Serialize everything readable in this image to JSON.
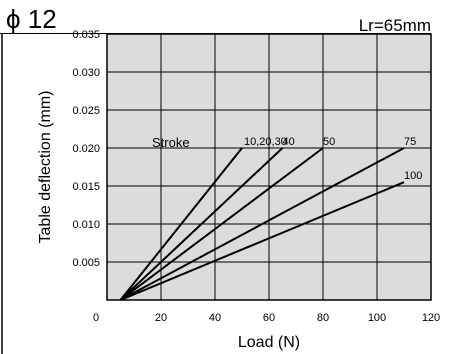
{
  "header": {
    "title": "ϕ 12",
    "corner_label": "Lr=65mm"
  },
  "colors": {
    "plot_background": "#dcdcdc",
    "grid": "#000000",
    "lines": "#000000"
  },
  "chart_data": {
    "type": "line",
    "title": "",
    "xlabel": "Load (N)",
    "ylabel": "Table deflection (mm)",
    "xlim": [
      0,
      120
    ],
    "ylim": [
      0,
      0.035
    ],
    "x_ticks": [
      "0",
      "20",
      "40",
      "60",
      "80",
      "100",
      "120"
    ],
    "y_ticks": [
      "0.005",
      "0.010",
      "0.015",
      "0.020",
      "0.025",
      "0.030",
      "0.035"
    ],
    "grid": true,
    "legend_title": "Stroke",
    "series": [
      {
        "name": "10,20,30",
        "x": [
          5,
          50
        ],
        "y": [
          0,
          0.02
        ]
      },
      {
        "name": "40",
        "x": [
          5,
          65
        ],
        "y": [
          0,
          0.02
        ]
      },
      {
        "name": "50",
        "x": [
          5,
          80
        ],
        "y": [
          0,
          0.02
        ]
      },
      {
        "name": "75",
        "x": [
          5,
          110
        ],
        "y": [
          0,
          0.02
        ]
      },
      {
        "name": "100",
        "x": [
          5,
          110
        ],
        "y": [
          0,
          0.0155
        ]
      }
    ]
  }
}
